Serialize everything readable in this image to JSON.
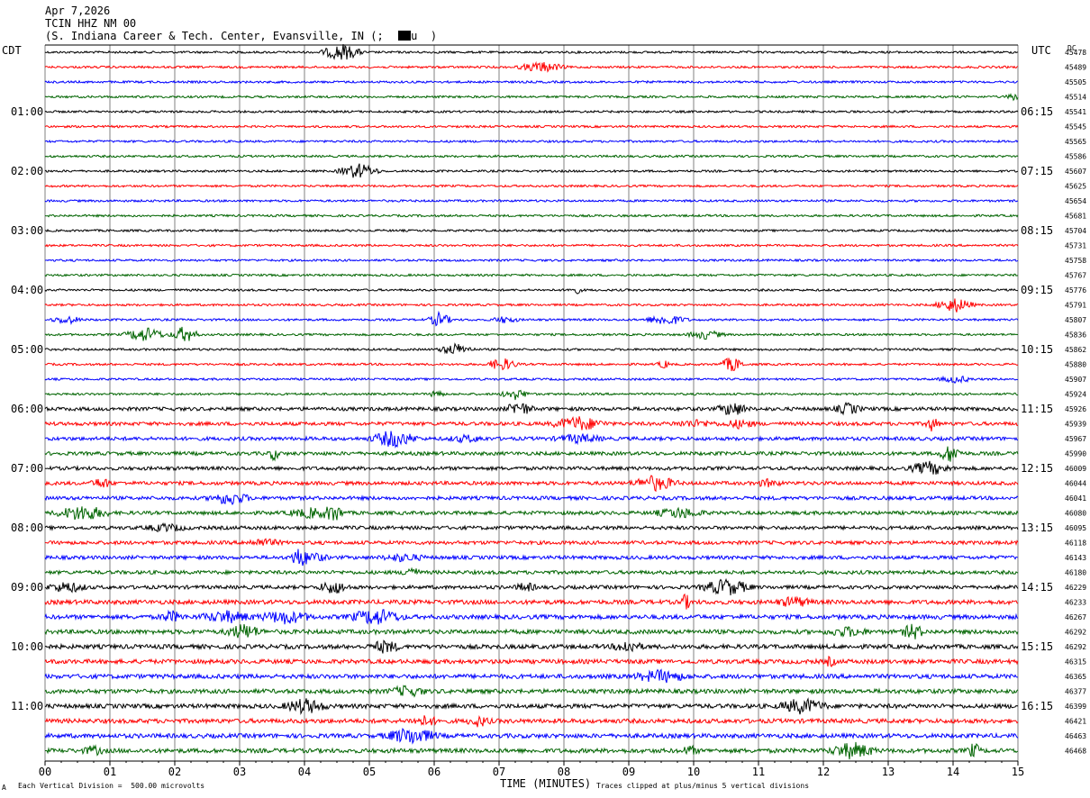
{
  "header": {
    "date": "Apr 7,2026",
    "station": "TCIN HHZ NM 00",
    "location": "(S. Indiana Career & Tech. Center, Evansville, IN (;  ",
    "location_tail": "u  )"
  },
  "left_zone": "CDT",
  "right_zone": "UTC",
  "dc_label": "DC",
  "footer": {
    "scale_note": "Each Vertical Division =  500.00 microvolts",
    "xlabel": "TIME (MINUTES)",
    "clip_note": "Traces clipped at plus/minus 5 vertical divisions",
    "corner_mark": "A"
  },
  "colors": {
    "black": "#000000",
    "red": "#ff0000",
    "blue": "#0000ff",
    "green": "#006400",
    "grid": "#808080"
  },
  "chart_data": {
    "type": "line",
    "title": "TCIN HHZ NM 00",
    "xlabel": "TIME (MINUTES)",
    "xlim": [
      0,
      15
    ],
    "x_ticks": [
      "00",
      "01",
      "02",
      "03",
      "04",
      "05",
      "06",
      "07",
      "08",
      "09",
      "10",
      "11",
      "12",
      "13",
      "14",
      "15"
    ],
    "left_hour_labels": [
      "01:00",
      "02:00",
      "03:00",
      "04:00",
      "05:00",
      "06:00",
      "07:00",
      "08:00",
      "09:00",
      "10:00",
      "11:00"
    ],
    "right_hour_labels": [
      "06:15",
      "07:15",
      "08:15",
      "09:15",
      "10:15",
      "11:15",
      "12:15",
      "13:15",
      "14:15",
      "15:15",
      "16:15"
    ],
    "trace_color_cycle": [
      "black",
      "red",
      "blue",
      "green"
    ],
    "trace_count": 48,
    "dc_offsets": [
      45478,
      45489,
      45505,
      45514,
      45541,
      45545,
      45565,
      45586,
      45607,
      45625,
      45654,
      45681,
      45704,
      45731,
      45758,
      45767,
      45776,
      45791,
      45807,
      45836,
      45862,
      45880,
      45907,
      45924,
      45926,
      45939,
      45967,
      45990,
      46009,
      46044,
      46041,
      46080,
      46095,
      46118,
      46143,
      46180,
      46229,
      46233,
      46267,
      46292,
      46292,
      46315,
      46365,
      46377,
      46399,
      46421,
      46463,
      46468
    ],
    "grid": true
  }
}
